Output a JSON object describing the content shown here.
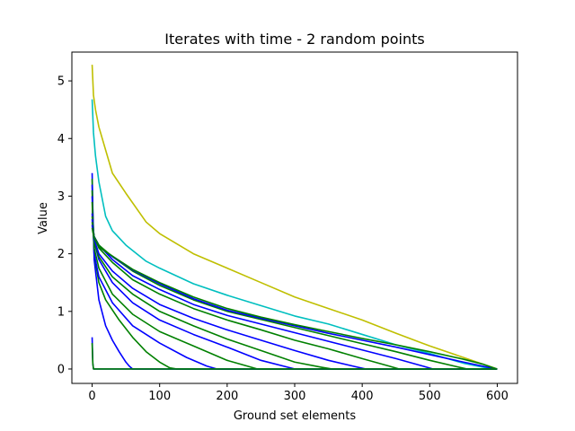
{
  "chart_data": {
    "type": "line",
    "title": "Iterates with time - 2 random points",
    "xlabel": "Ground set elements",
    "ylabel": "Value",
    "xlim": [
      -30,
      630
    ],
    "ylim": [
      -0.25,
      5.5
    ],
    "xticks": [
      0,
      100,
      200,
      300,
      400,
      500,
      600
    ],
    "yticks": [
      0,
      1,
      2,
      3,
      4,
      5
    ],
    "grid": false,
    "legend": "none",
    "series": [
      {
        "color": "#bfbf00",
        "x": [
          0,
          2,
          5,
          10,
          20,
          30,
          50,
          80,
          100,
          150,
          200,
          250,
          300,
          350,
          400,
          450,
          500,
          550,
          580,
          600
        ],
        "y": [
          5.28,
          4.75,
          4.5,
          4.2,
          3.8,
          3.4,
          3.05,
          2.55,
          2.35,
          2.0,
          1.75,
          1.5,
          1.25,
          1.05,
          0.85,
          0.62,
          0.4,
          0.2,
          0.08,
          0.0
        ]
      },
      {
        "color": "#00bfbf",
        "x": [
          0,
          2,
          5,
          10,
          20,
          30,
          50,
          80,
          100,
          150,
          200,
          250,
          300,
          350,
          400,
          450,
          500,
          550,
          580,
          600
        ],
        "y": [
          4.68,
          4.1,
          3.7,
          3.25,
          2.65,
          2.4,
          2.15,
          1.87,
          1.75,
          1.48,
          1.28,
          1.1,
          0.92,
          0.78,
          0.6,
          0.42,
          0.27,
          0.1,
          0.03,
          0.0
        ]
      },
      {
        "color": "#0000ff",
        "x": [
          0,
          1,
          3,
          10,
          20,
          30,
          40,
          50,
          55,
          60,
          62,
          600
        ],
        "y": [
          3.4,
          2.8,
          1.9,
          1.2,
          0.75,
          0.5,
          0.3,
          0.12,
          0.05,
          0.0,
          0.0,
          0.0
        ]
      },
      {
        "color": "#008000",
        "x": [
          0,
          1,
          3,
          10,
          20,
          40,
          60,
          80,
          100,
          115,
          125,
          600
        ],
        "y": [
          3.3,
          2.7,
          2.0,
          1.5,
          1.2,
          0.85,
          0.55,
          0.3,
          0.12,
          0.02,
          0.0,
          0.0
        ]
      },
      {
        "color": "#0000ff",
        "x": [
          0,
          1,
          3,
          10,
          30,
          60,
          100,
          140,
          170,
          185,
          600
        ],
        "y": [
          3.2,
          2.6,
          2.0,
          1.6,
          1.15,
          0.75,
          0.45,
          0.2,
          0.05,
          0.0,
          0.0
        ]
      },
      {
        "color": "#008000",
        "x": [
          0,
          1,
          3,
          10,
          30,
          60,
          100,
          150,
          200,
          230,
          245,
          600
        ],
        "y": [
          3.1,
          2.55,
          2.1,
          1.75,
          1.3,
          0.95,
          0.65,
          0.4,
          0.15,
          0.05,
          0.0,
          0.0
        ]
      },
      {
        "color": "#0000ff",
        "x": [
          0,
          1,
          3,
          10,
          30,
          60,
          100,
          150,
          200,
          250,
          290,
          300,
          600
        ],
        "y": [
          3.0,
          2.6,
          2.2,
          1.9,
          1.5,
          1.15,
          0.85,
          0.6,
          0.38,
          0.15,
          0.03,
          0.0,
          0.0
        ]
      },
      {
        "color": "#008000",
        "x": [
          0,
          1,
          3,
          10,
          30,
          60,
          100,
          150,
          200,
          250,
          300,
          340,
          355,
          600
        ],
        "y": [
          2.9,
          2.55,
          2.2,
          1.95,
          1.6,
          1.3,
          1.0,
          0.75,
          0.52,
          0.32,
          0.12,
          0.03,
          0.0,
          0.0
        ]
      },
      {
        "color": "#0000ff",
        "x": [
          0,
          1,
          3,
          10,
          30,
          60,
          100,
          150,
          200,
          250,
          300,
          350,
          390,
          405,
          600
        ],
        "y": [
          2.7,
          2.5,
          2.25,
          2.0,
          1.7,
          1.4,
          1.12,
          0.88,
          0.68,
          0.5,
          0.32,
          0.15,
          0.04,
          0.0,
          0.0
        ]
      },
      {
        "color": "#008000",
        "x": [
          0,
          1,
          3,
          10,
          30,
          60,
          100,
          150,
          200,
          250,
          300,
          350,
          400,
          440,
          455,
          600
        ],
        "y": [
          2.65,
          2.5,
          2.3,
          2.1,
          1.85,
          1.55,
          1.3,
          1.05,
          0.85,
          0.68,
          0.5,
          0.35,
          0.18,
          0.05,
          0.0,
          0.0
        ]
      },
      {
        "color": "#0000ff",
        "x": [
          0,
          1,
          3,
          10,
          30,
          60,
          100,
          150,
          200,
          250,
          300,
          350,
          400,
          450,
          490,
          505,
          600
        ],
        "y": [
          2.6,
          2.45,
          2.3,
          2.15,
          1.9,
          1.62,
          1.38,
          1.12,
          0.93,
          0.78,
          0.63,
          0.48,
          0.33,
          0.18,
          0.05,
          0.0,
          0.0
        ]
      },
      {
        "color": "#008000",
        "x": [
          0,
          1,
          3,
          10,
          30,
          60,
          100,
          150,
          200,
          250,
          300,
          350,
          400,
          450,
          500,
          540,
          555,
          600
        ],
        "y": [
          2.55,
          2.45,
          2.3,
          2.15,
          1.95,
          1.7,
          1.45,
          1.2,
          1.0,
          0.86,
          0.72,
          0.58,
          0.44,
          0.3,
          0.15,
          0.04,
          0.0,
          0.0
        ]
      },
      {
        "color": "#0000ff",
        "x": [
          0,
          1,
          3,
          10,
          30,
          60,
          100,
          150,
          200,
          250,
          300,
          350,
          400,
          450,
          500,
          550,
          590,
          600
        ],
        "y": [
          2.5,
          2.4,
          2.28,
          2.12,
          1.95,
          1.72,
          1.48,
          1.22,
          1.02,
          0.88,
          0.75,
          0.62,
          0.5,
          0.38,
          0.25,
          0.12,
          0.02,
          0.0
        ]
      },
      {
        "color": "#008000",
        "x": [
          0,
          1,
          3,
          10,
          30,
          60,
          100,
          150,
          200,
          250,
          300,
          350,
          400,
          450,
          500,
          550,
          580,
          600
        ],
        "y": [
          2.45,
          2.38,
          2.27,
          2.12,
          1.96,
          1.73,
          1.5,
          1.25,
          1.05,
          0.9,
          0.77,
          0.65,
          0.53,
          0.42,
          0.3,
          0.17,
          0.08,
          0.0
        ]
      },
      {
        "color": "#0000ff",
        "x": [
          0,
          1,
          2,
          600
        ],
        "y": [
          0.55,
          0.1,
          0.0,
          0.0
        ]
      },
      {
        "color": "#008000",
        "x": [
          0,
          1,
          2,
          600
        ],
        "y": [
          0.45,
          0.1,
          0.0,
          0.0
        ]
      }
    ]
  }
}
